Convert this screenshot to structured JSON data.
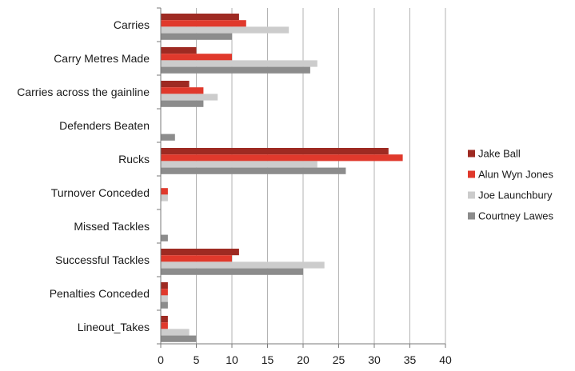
{
  "chart_data": {
    "type": "bar",
    "orientation": "horizontal",
    "title": "",
    "xlabel": "",
    "ylabel": "",
    "xlim": [
      0,
      40
    ],
    "x_ticks": [
      0,
      5,
      10,
      15,
      20,
      25,
      30,
      35,
      40
    ],
    "grid": true,
    "legend_position": "right",
    "categories": [
      "Carries",
      "Carry Metres Made",
      "Carries across the gainline",
      "Defenders Beaten",
      "Rucks",
      "Turnover Conceded",
      "Missed Tackles",
      "Successful Tackles",
      "Penalties Conceded",
      "Lineout_Takes"
    ],
    "series": [
      {
        "name": "Jake Ball",
        "color": "#9e2a22",
        "values": [
          11,
          5,
          4,
          0,
          32,
          0,
          0,
          11,
          1,
          1
        ]
      },
      {
        "name": "Alun Wyn Jones",
        "color": "#e0392c",
        "values": [
          12,
          10,
          6,
          0,
          34,
          1,
          0,
          10,
          1,
          1
        ]
      },
      {
        "name": "Joe Launchbury",
        "color": "#cccccc",
        "values": [
          18,
          22,
          8,
          0,
          22,
          1,
          0,
          23,
          1,
          4
        ]
      },
      {
        "name": "Courtney Lawes",
        "color": "#8c8c8c",
        "values": [
          10,
          21,
          6,
          2,
          26,
          0,
          1,
          20,
          1,
          5
        ]
      }
    ]
  }
}
